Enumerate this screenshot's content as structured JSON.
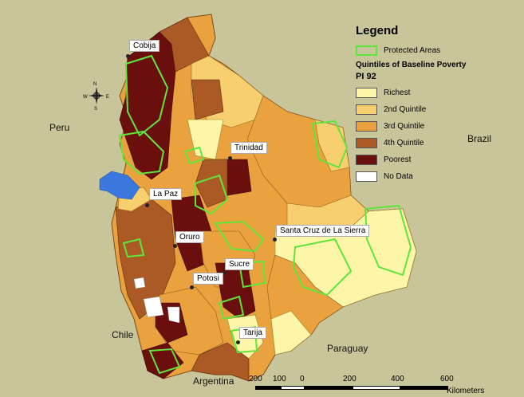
{
  "countries": {
    "peru": "Peru",
    "brazil": "Brazil",
    "chile": "Chile",
    "paraguay": "Paraguay",
    "argentina": "Argentina"
  },
  "cities": [
    {
      "name": "Cobija"
    },
    {
      "name": "Trinidad"
    },
    {
      "name": "La Paz"
    },
    {
      "name": "Santa Cruz de La Sierra"
    },
    {
      "name": "Oruro"
    },
    {
      "name": "Sucre"
    },
    {
      "name": "Potosi"
    },
    {
      "name": "Tarija"
    }
  ],
  "legend": {
    "title": "Legend",
    "protected_label": "Protected Areas",
    "subtitle": "Quintiles of Baseline Poverty",
    "subtitle2": "PI 92",
    "classes": [
      {
        "label": "Richest",
        "color": "#fdf5a8"
      },
      {
        "label": "2nd Quintile",
        "color": "#f7cf6f"
      },
      {
        "label": "3rd Quintile",
        "color": "#e9a23e"
      },
      {
        "label": "4th Quintile",
        "color": "#ab5a25"
      },
      {
        "label": "Poorest",
        "color": "#6a0e0e"
      },
      {
        "label": "No Data",
        "color": "#ffffff"
      }
    ]
  },
  "scale": {
    "ticks": [
      "200",
      "100",
      "0",
      "200",
      "400",
      "600"
    ],
    "unit": "Kilometers"
  },
  "colors": {
    "background": "#c9c59a",
    "protected_outline": "#5ee63a",
    "lake": "#3a78e0"
  }
}
